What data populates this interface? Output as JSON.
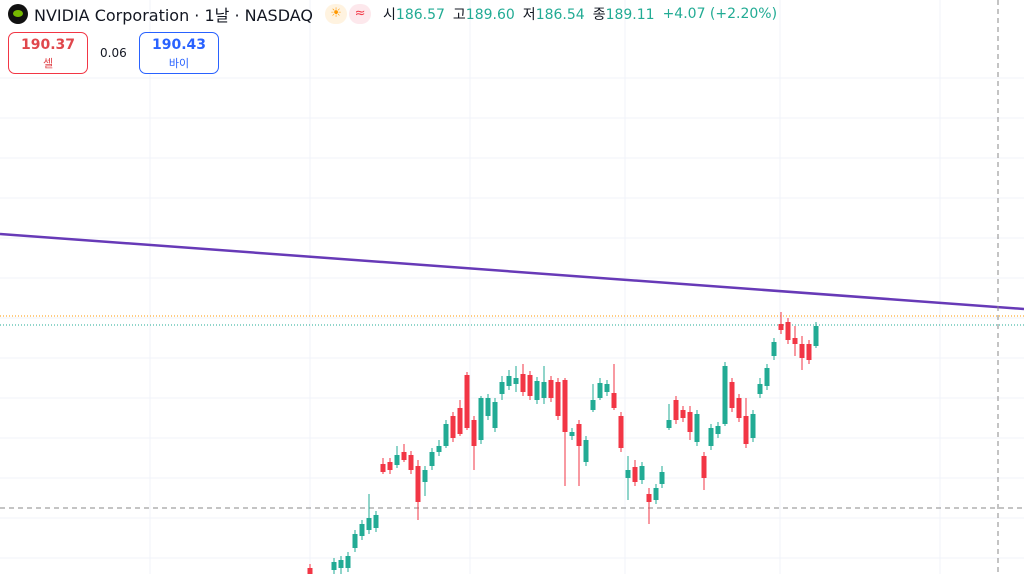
{
  "header": {
    "title": "NVIDIA Corporation · 1날 · NASDAQ",
    "ohlc": [
      {
        "label": "시",
        "value": "186.57"
      },
      {
        "label": "고",
        "value": "189.60"
      },
      {
        "label": "저",
        "value": "186.54"
      },
      {
        "label": "종",
        "value": "189.11"
      }
    ],
    "change": "+4.07 (+2.20%)"
  },
  "trade": {
    "sell": {
      "price": "190.37",
      "label": "셀"
    },
    "spread": "0.06",
    "buy": {
      "price": "190.43",
      "label": "바이"
    }
  }
}
